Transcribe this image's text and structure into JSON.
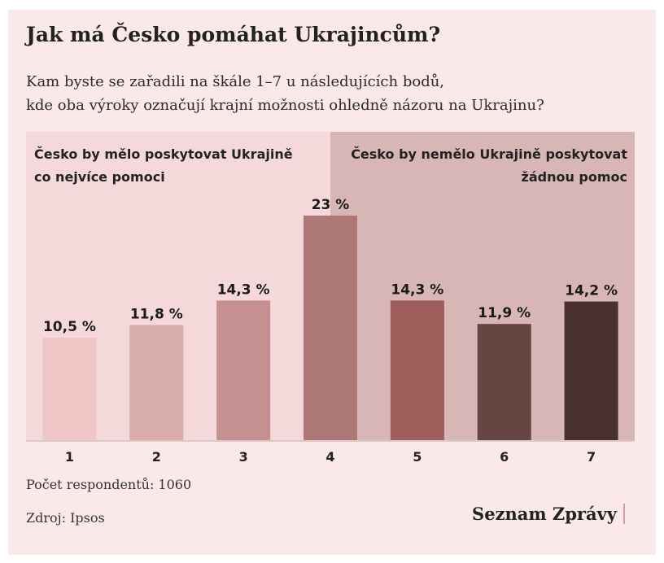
{
  "chart_data": {
    "type": "bar",
    "title": "Jak má Česko pomáhat Ukrajincům?",
    "subtitle_lines": [
      "Kam byste se zařadili na škále 1–7 u následujících bodů,",
      "kde oba výroky označují krajní možnosti ohledně názoru na Ukrajinu?"
    ],
    "left_pole": [
      "Česko by mělo poskytovat Ukrajině",
      "co nejvíce pomoci"
    ],
    "right_pole": [
      "Česko by nemělo Ukrajině poskytovat",
      "žádnou pomoc"
    ],
    "categories": [
      "1",
      "2",
      "3",
      "4",
      "5",
      "6",
      "7"
    ],
    "values": [
      10.5,
      11.8,
      14.3,
      23,
      14.3,
      11.9,
      14.2
    ],
    "value_labels": [
      "10,5 %",
      "11,8 %",
      "14,3 %",
      "23 %",
      "14,3 %",
      "11,9 %",
      "14,2 %"
    ],
    "colors": [
      "#efc6c6",
      "#d8acab",
      "#c49190",
      "#ae7876",
      "#9d5e5c",
      "#674543",
      "#49302f"
    ],
    "panel_colors": {
      "left": "#f5d9da",
      "right": "#d8b6b6",
      "axis": "#bfa8a8"
    },
    "ylim": [
      0,
      25
    ],
    "grid": false,
    "xlabel": "",
    "ylabel": ""
  },
  "footer": {
    "respondents": "Počet respondentů: 1060",
    "source": "Zdroj: Ipsos",
    "logo": "Seznam Zprávy"
  }
}
